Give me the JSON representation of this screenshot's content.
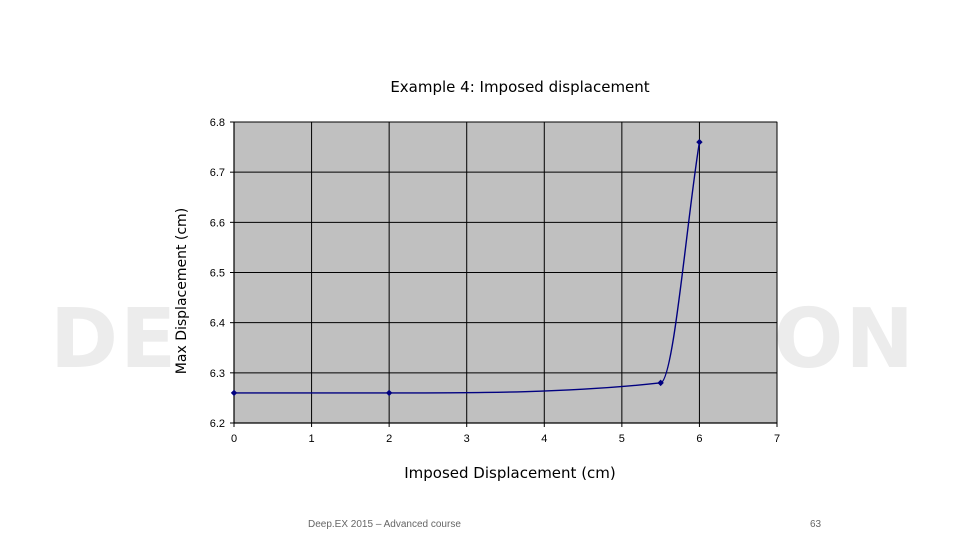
{
  "watermark": {
    "left": "DE",
    "right": "ON"
  },
  "footer": {
    "text": "Deep.EX 2015 – Advanced course",
    "page_number": "63"
  },
  "chart_data": {
    "type": "line",
    "title": "Example 4: Imposed displacement",
    "xlabel": "Imposed Displacement (cm)",
    "ylabel": "Max Displacement (cm)",
    "xlim": [
      0,
      7
    ],
    "ylim": [
      6.2,
      6.8
    ],
    "xticks": [
      "0",
      "1",
      "2",
      "3",
      "4",
      "5",
      "6",
      "7"
    ],
    "yticks": [
      "6.2",
      "6.3",
      "6.4",
      "6.5",
      "6.6",
      "6.7",
      "6.8"
    ],
    "grid": true,
    "smooth": true,
    "series": [
      {
        "x": [
          0,
          2,
          5.5,
          6
        ],
        "y": [
          6.26,
          6.26,
          6.28,
          6.76
        ],
        "color": "#000080"
      }
    ],
    "plot_background": "#c0c0c0"
  }
}
